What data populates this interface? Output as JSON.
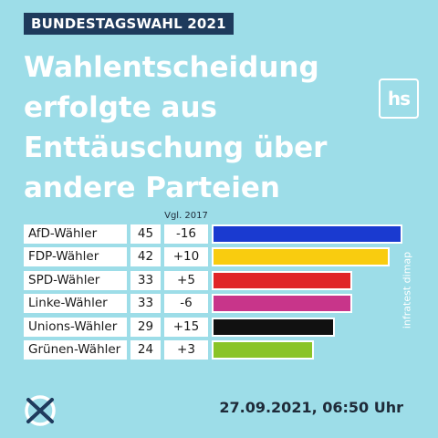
{
  "kicker": "BUNDESTAGSWAHL 2021",
  "headline": [
    "Wahlentscheidung",
    "erfolgte aus",
    "Enttäuschung über",
    "andere Parteien"
  ],
  "logo_text": "hs",
  "source": "infratest dimap",
  "date": "27.09.2021, 06:50 Uhr",
  "chart_data": {
    "type": "bar",
    "orientation": "horizontal",
    "comparison_header": "Vgl. 2017",
    "categories": [
      "AfD-Wähler",
      "FDP-Wähler",
      "SPD-Wähler",
      "Linke-Wähler",
      "Unions-Wähler",
      "Grünen-Wähler"
    ],
    "values": [
      45,
      42,
      33,
      33,
      29,
      24
    ],
    "comparison": [
      "-16",
      "+10",
      "+5",
      "-6",
      "+15",
      "+3"
    ],
    "colors": [
      "#1a3ad0",
      "#f9cc0f",
      "#e02528",
      "#c8358a",
      "#111111",
      "#8ac427"
    ],
    "xlim": [
      0,
      46
    ],
    "grid": false
  }
}
